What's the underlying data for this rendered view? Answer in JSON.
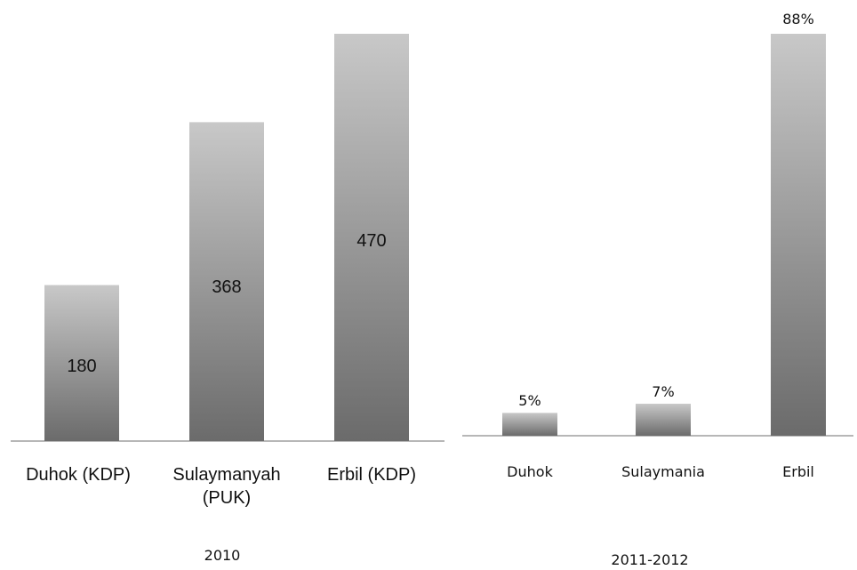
{
  "chart_data": [
    {
      "type": "bar",
      "subtitle": "2010",
      "categories": [
        "Duhok (KDP)",
        "Sulaymanyah (PUK)",
        "Erbil (KDP)"
      ],
      "values": [
        180,
        368,
        470
      ],
      "data_labels": [
        "180",
        "368",
        "470"
      ],
      "ylim": [
        0,
        470
      ],
      "grid": false,
      "colors": {
        "bar_top": "#c8c8c8",
        "bar_bottom": "#6b6b6b",
        "axis": "#8c8c8c"
      }
    },
    {
      "type": "bar",
      "subtitle": "2011-2012",
      "categories": [
        "Duhok",
        "Sulaymania",
        "Erbil"
      ],
      "values": [
        5,
        7,
        88
      ],
      "data_labels": [
        "5%",
        "7%",
        "88%"
      ],
      "ylim": [
        0,
        88
      ],
      "grid": false,
      "colors": {
        "bar_top": "#c8c8c8",
        "bar_bottom": "#6b6b6b",
        "axis": "#8c8c8c"
      }
    }
  ]
}
